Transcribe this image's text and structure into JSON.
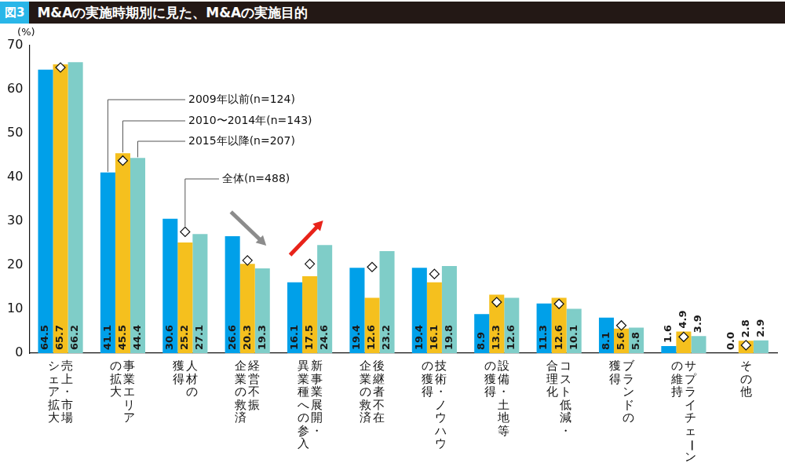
{
  "chart_data": {
    "type": "bar",
    "figure_label": "図3",
    "title": "M&Aの実施時期別に見た、M&Aの実施目的",
    "ylabel": "(%)",
    "categories": [
      [
        "売上・市場",
        "シェア拡大"
      ],
      [
        "事業エリア",
        "の拡大"
      ],
      [
        "人材の",
        "獲得"
      ],
      [
        "経営不振",
        "企業の救済"
      ],
      [
        "新事業展開・",
        "異業種への参入"
      ],
      [
        "後継者不在",
        "企業の救済"
      ],
      [
        "技術・ノウハウ",
        "の獲得"
      ],
      [
        "設備・土地等",
        "の獲得"
      ],
      [
        "コスト低減・",
        "合理化"
      ],
      [
        "ブランドの",
        "獲得"
      ],
      [
        "サプライチェーン",
        "の維持"
      ],
      [
        "その他"
      ]
    ],
    "series": [
      {
        "name": "2009年以前(n=124)",
        "color": "#00a0e9",
        "values": [
          64.5,
          41.1,
          30.6,
          26.6,
          16.1,
          19.4,
          19.4,
          8.9,
          11.3,
          8.1,
          1.6,
          0.0
        ],
        "value_labels": [
          "64.5",
          "41.1",
          "30.6",
          "26.6",
          "16.1",
          "19.4",
          "19.4",
          "8.9",
          "11.3",
          "8.1",
          "1.6",
          "0.0"
        ]
      },
      {
        "name": "2010〜2014年(n=143)",
        "color": "#f5c01e",
        "values": [
          65.7,
          45.5,
          25.2,
          20.3,
          17.5,
          12.6,
          16.1,
          13.3,
          12.6,
          5.6,
          4.9,
          2.8
        ],
        "value_labels": [
          "65.7",
          "45.5",
          "25.2",
          "20.3",
          "17.5",
          "12.6",
          "16.1",
          "13.3",
          "12.6",
          "5.6",
          "4.9",
          "2.8"
        ]
      },
      {
        "name": "2015年以降(n=207)",
        "color": "#7fcdc8",
        "values": [
          66.2,
          44.4,
          27.1,
          19.3,
          24.6,
          23.2,
          19.8,
          12.6,
          10.1,
          5.8,
          3.9,
          2.9
        ],
        "value_labels": [
          "66.2",
          "44.4",
          "27.1",
          "19.3",
          "24.6",
          "23.2",
          "19.8",
          "12.6",
          "10.1",
          "5.8",
          "3.9",
          "2.9"
        ]
      },
      {
        "name": "全体(n=488)",
        "type": "scatter",
        "marker": "diamond",
        "color": "#ffffff",
        "values": [
          65.0,
          43.8,
          27.6,
          21.1,
          20.3,
          19.6,
          18.0,
          11.6,
          11.2,
          6.3,
          3.7,
          1.8
        ]
      }
    ],
    "ylim": [
      0,
      70
    ],
    "yticks": [
      0,
      10,
      20,
      30,
      40,
      50,
      60,
      70
    ],
    "grid": false,
    "data_labels": true
  }
}
